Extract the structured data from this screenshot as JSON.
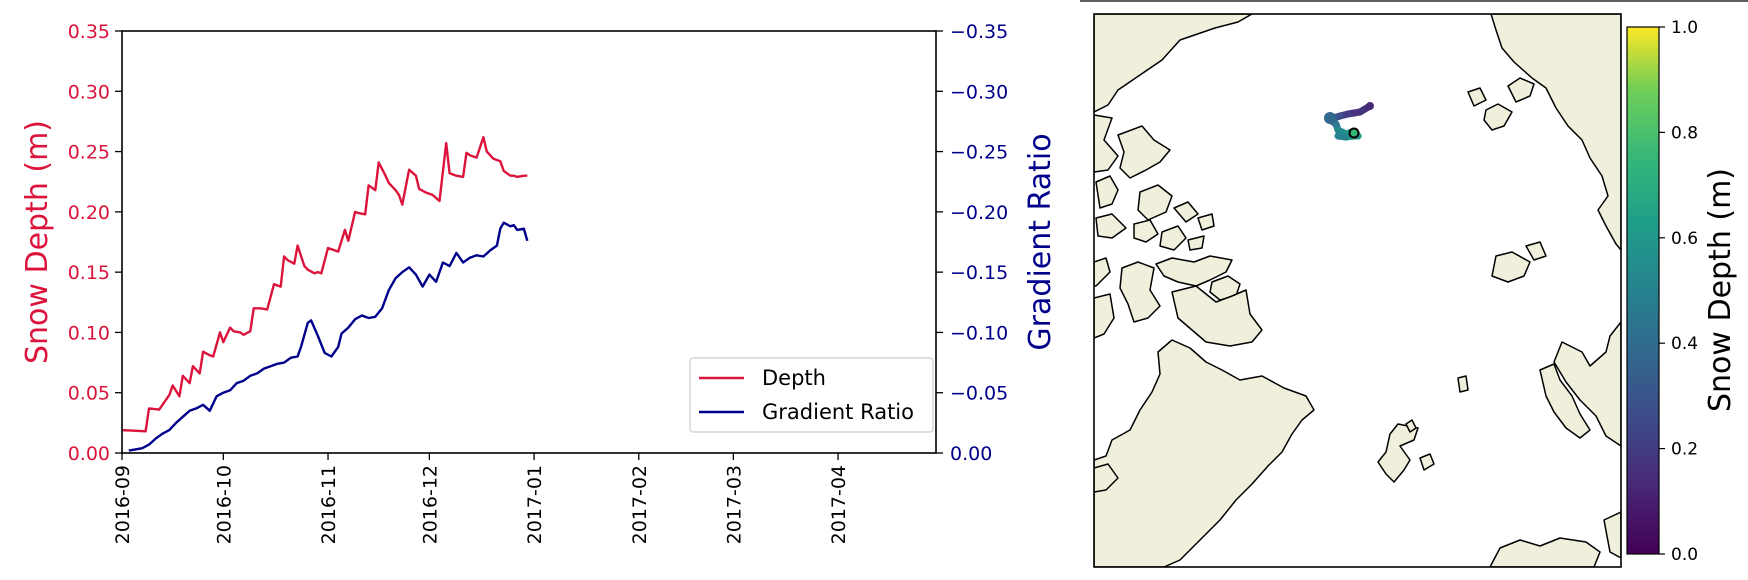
{
  "colors": {
    "depth": "#dc143c",
    "gradient": "#00008b",
    "land": "#efefdb",
    "frame": "#000000"
  },
  "chart_data": [
    {
      "type": "line",
      "title": "",
      "xlabel": "",
      "ylabel": "Snow Depth (m)",
      "ylabel_right": "Gradient Ratio",
      "xlim": [
        "2016-09-01",
        "2017-04-30"
      ],
      "ylim": [
        0,
        0.35
      ],
      "ylim_right": [
        0,
        -0.35
      ],
      "right_axis_inverted": true,
      "x_ticks": [
        "2016-09",
        "2016-10",
        "2016-11",
        "2016-12",
        "2017-01",
        "2017-02",
        "2017-03",
        "2017-04"
      ],
      "y_ticks": [
        "0.00",
        "0.05",
        "0.10",
        "0.15",
        "0.20",
        "0.25",
        "0.30",
        "0.35"
      ],
      "y_ticks_right": [
        "0.00",
        "−0.05",
        "−0.10",
        "−0.15",
        "−0.20",
        "−0.25",
        "−0.30",
        "−0.35"
      ],
      "grid": false,
      "legend_position": "lower-right",
      "legend": [
        "Depth",
        "Gradient Ratio"
      ],
      "series": [
        {
          "name": "Depth",
          "axis": "left",
          "x": [
            "2016-09-01",
            "2016-09-08",
            "2016-09-09",
            "2016-09-12",
            "2016-09-13",
            "2016-09-15",
            "2016-09-16",
            "2016-09-18",
            "2016-09-19",
            "2016-09-21",
            "2016-09-22",
            "2016-09-24",
            "2016-09-25",
            "2016-09-27",
            "2016-09-28",
            "2016-09-30",
            "2016-10-01",
            "2016-10-03",
            "2016-10-04",
            "2016-10-06",
            "2016-10-07",
            "2016-10-09",
            "2016-10-10",
            "2016-10-12",
            "2016-10-14",
            "2016-10-16",
            "2016-10-18",
            "2016-10-19",
            "2016-10-20",
            "2016-10-22",
            "2016-10-23",
            "2016-10-25",
            "2016-10-26",
            "2016-10-28",
            "2016-10-29",
            "2016-10-30",
            "2016-11-01",
            "2016-11-03",
            "2016-11-04",
            "2016-11-06",
            "2016-11-07",
            "2016-11-09",
            "2016-11-10",
            "2016-11-12",
            "2016-11-13",
            "2016-11-15",
            "2016-11-16",
            "2016-11-18",
            "2016-11-19",
            "2016-11-21",
            "2016-11-22",
            "2016-11-23",
            "2016-11-25",
            "2016-11-27",
            "2016-11-28",
            "2016-11-30",
            "2016-12-01",
            "2016-12-02",
            "2016-12-04",
            "2016-12-06",
            "2016-12-07",
            "2016-12-09",
            "2016-12-11",
            "2016-12-12",
            "2016-12-13",
            "2016-12-15",
            "2016-12-17",
            "2016-12-18",
            "2016-12-20",
            "2016-12-22",
            "2016-12-23",
            "2016-12-25",
            "2016-12-26",
            "2016-12-27",
            "2016-12-29",
            "2016-12-30"
          ],
          "values": [
            0.019,
            0.018,
            0.037,
            0.036,
            0.04,
            0.048,
            0.056,
            0.047,
            0.064,
            0.058,
            0.072,
            0.066,
            0.084,
            0.081,
            0.08,
            0.1,
            0.092,
            0.104,
            0.101,
            0.1,
            0.098,
            0.101,
            0.12,
            0.12,
            0.119,
            0.14,
            0.138,
            0.163,
            0.16,
            0.157,
            0.172,
            0.155,
            0.152,
            0.149,
            0.15,
            0.149,
            0.17,
            0.168,
            0.167,
            0.185,
            0.176,
            0.2,
            0.199,
            0.198,
            0.222,
            0.218,
            0.241,
            0.23,
            0.224,
            0.218,
            0.214,
            0.206,
            0.235,
            0.23,
            0.219,
            0.216,
            0.215,
            0.214,
            0.209,
            0.257,
            0.232,
            0.23,
            0.229,
            0.249,
            0.247,
            0.245,
            0.262,
            0.25,
            0.244,
            0.242,
            0.234,
            0.23,
            0.23,
            0.229,
            0.23,
            0.23
          ]
        },
        {
          "name": "Gradient Ratio",
          "axis": "right",
          "x": [
            "2016-09-03",
            "2016-09-05",
            "2016-09-07",
            "2016-09-09",
            "2016-09-11",
            "2016-09-13",
            "2016-09-15",
            "2016-09-17",
            "2016-09-19",
            "2016-09-21",
            "2016-09-23",
            "2016-09-25",
            "2016-09-27",
            "2016-09-29",
            "2016-10-01",
            "2016-10-03",
            "2016-10-05",
            "2016-10-07",
            "2016-10-09",
            "2016-10-11",
            "2016-10-13",
            "2016-10-15",
            "2016-10-17",
            "2016-10-19",
            "2016-10-21",
            "2016-10-23",
            "2016-10-24",
            "2016-10-26",
            "2016-10-27",
            "2016-10-29",
            "2016-10-31",
            "2016-11-02",
            "2016-11-04",
            "2016-11-05",
            "2016-11-07",
            "2016-11-09",
            "2016-11-11",
            "2016-11-13",
            "2016-11-15",
            "2016-11-17",
            "2016-11-19",
            "2016-11-21",
            "2016-11-23",
            "2016-11-25",
            "2016-11-27",
            "2016-11-29",
            "2016-12-01",
            "2016-12-03",
            "2016-12-05",
            "2016-12-07",
            "2016-12-09",
            "2016-12-11",
            "2016-12-13",
            "2016-12-15",
            "2016-12-17",
            "2016-12-19",
            "2016-12-21",
            "2016-12-22",
            "2016-12-23",
            "2016-12-25",
            "2016-12-26",
            "2016-12-27",
            "2016-12-29",
            "2016-12-30"
          ],
          "values": [
            -0.002,
            -0.003,
            -0.004,
            -0.007,
            -0.012,
            -0.016,
            -0.019,
            -0.025,
            -0.03,
            -0.035,
            -0.037,
            -0.04,
            -0.035,
            -0.047,
            -0.05,
            -0.052,
            -0.058,
            -0.06,
            -0.064,
            -0.066,
            -0.07,
            -0.072,
            -0.074,
            -0.075,
            -0.079,
            -0.08,
            -0.088,
            -0.108,
            -0.11,
            -0.097,
            -0.083,
            -0.08,
            -0.088,
            -0.099,
            -0.104,
            -0.111,
            -0.114,
            -0.112,
            -0.113,
            -0.12,
            -0.135,
            -0.145,
            -0.15,
            -0.154,
            -0.148,
            -0.138,
            -0.148,
            -0.142,
            -0.158,
            -0.155,
            -0.166,
            -0.158,
            -0.162,
            -0.164,
            -0.163,
            -0.168,
            -0.172,
            -0.186,
            -0.191,
            -0.188,
            -0.189,
            -0.185,
            -0.186,
            -0.176
          ]
        }
      ]
    },
    {
      "type": "map",
      "title": "",
      "description_of_marks": "polar stereographic map with a drifting buoy track colored by snow depth",
      "colorbar": {
        "label": "Snow Depth (m)",
        "range": [
          0,
          1
        ],
        "ticks": [
          "0.0",
          "0.2",
          "0.4",
          "0.6",
          "0.8",
          "1.0"
        ],
        "colormap": "viridis"
      }
    }
  ]
}
